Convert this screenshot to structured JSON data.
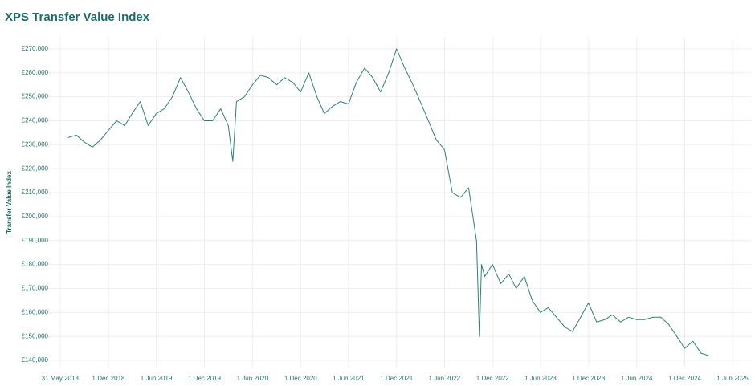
{
  "chart_data": {
    "type": "line",
    "title": "XPS Transfer Value Index",
    "ylabel": "Transfer Value Index",
    "x": [
      "2018-07-01",
      "2018-08-01",
      "2018-09-01",
      "2018-10-01",
      "2018-11-01",
      "2018-12-01",
      "2019-01-01",
      "2019-02-01",
      "2019-03-01",
      "2019-04-01",
      "2019-05-01",
      "2019-06-01",
      "2019-07-01",
      "2019-08-01",
      "2019-09-01",
      "2019-10-01",
      "2019-11-01",
      "2019-12-01",
      "2020-01-01",
      "2020-02-01",
      "2020-03-01",
      "2020-03-18",
      "2020-04-01",
      "2020-05-01",
      "2020-06-01",
      "2020-07-01",
      "2020-08-01",
      "2020-09-01",
      "2020-10-01",
      "2020-11-01",
      "2020-12-01",
      "2021-01-01",
      "2021-02-01",
      "2021-03-01",
      "2021-04-01",
      "2021-05-01",
      "2021-06-01",
      "2021-07-01",
      "2021-08-01",
      "2021-09-01",
      "2021-10-01",
      "2021-11-01",
      "2021-12-01",
      "2022-01-01",
      "2022-02-01",
      "2022-03-01",
      "2022-04-01",
      "2022-05-01",
      "2022-06-01",
      "2022-07-01",
      "2022-08-01",
      "2022-09-01",
      "2022-10-01",
      "2022-10-12",
      "2022-10-20",
      "2022-11-01",
      "2022-12-01",
      "2023-01-01",
      "2023-02-01",
      "2023-03-01",
      "2023-04-01",
      "2023-05-01",
      "2023-06-01",
      "2023-07-01",
      "2023-08-01",
      "2023-09-01",
      "2023-10-01",
      "2023-11-01",
      "2023-12-01",
      "2024-01-01",
      "2024-02-01",
      "2024-03-01",
      "2024-04-01",
      "2024-05-01",
      "2024-06-01",
      "2024-07-01",
      "2024-08-01",
      "2024-09-01",
      "2024-10-01",
      "2024-11-01",
      "2024-12-01",
      "2025-01-01",
      "2025-02-01",
      "2025-03-01"
    ],
    "series": [
      {
        "name": "Transfer Value Index",
        "color": "#2e7f78",
        "values": [
          233000,
          234000,
          231000,
          229000,
          232000,
          236000,
          240000,
          238000,
          243000,
          248000,
          238000,
          243000,
          245000,
          250000,
          258000,
          252000,
          245000,
          240000,
          240000,
          245000,
          238000,
          223000,
          248000,
          250000,
          255000,
          259000,
          258000,
          255000,
          258000,
          256000,
          252000,
          260000,
          250000,
          243000,
          246000,
          248000,
          247000,
          256000,
          262000,
          258000,
          252000,
          260000,
          270000,
          262000,
          255000,
          248000,
          240000,
          232000,
          228000,
          210000,
          208000,
          212000,
          190000,
          150000,
          180000,
          175000,
          180000,
          172000,
          176000,
          170000,
          175000,
          165000,
          160000,
          162000,
          158000,
          154000,
          152000,
          158000,
          164000,
          156000,
          157000,
          159000,
          156000,
          158000,
          157000,
          157000,
          158000,
          158000,
          155000,
          150000,
          145000,
          148000,
          143000,
          142000
        ]
      }
    ],
    "xlim": [
      "2018-03-01",
      "2025-08-10"
    ],
    "xticks": [
      {
        "value": "2018-05-31",
        "label": "31 May 2018"
      },
      {
        "value": "2018-12-01",
        "label": "1 Dec 2018"
      },
      {
        "value": "2019-06-01",
        "label": "1 Jun 2019"
      },
      {
        "value": "2019-12-01",
        "label": "1 Dec 2019"
      },
      {
        "value": "2020-06-01",
        "label": "1 Jun 2020"
      },
      {
        "value": "2020-12-01",
        "label": "1 Dec 2020"
      },
      {
        "value": "2021-06-01",
        "label": "1 Jun 2021"
      },
      {
        "value": "2021-12-01",
        "label": "1 Dec 2021"
      },
      {
        "value": "2022-06-01",
        "label": "1 Jun 2022"
      },
      {
        "value": "2022-12-01",
        "label": "1 Dec 2022"
      },
      {
        "value": "2023-06-01",
        "label": "1 Jun 2023"
      },
      {
        "value": "2023-12-01",
        "label": "1 Dec 2023"
      },
      {
        "value": "2024-06-01",
        "label": "1 Jun 2024"
      },
      {
        "value": "2024-12-01",
        "label": "1 Dec 2024"
      },
      {
        "value": "2025-06-01",
        "label": "1 Jun 2025"
      }
    ],
    "ylim": [
      137000,
      275000
    ],
    "yticks": [
      {
        "value": 140000,
        "label": "£140,000"
      },
      {
        "value": 150000,
        "label": "£150,000"
      },
      {
        "value": 160000,
        "label": "£160,000"
      },
      {
        "value": 170000,
        "label": "£170,000"
      },
      {
        "value": 180000,
        "label": "£180,000"
      },
      {
        "value": 190000,
        "label": "£190,000"
      },
      {
        "value": 200000,
        "label": "£200,000"
      },
      {
        "value": 210000,
        "label": "£210,000"
      },
      {
        "value": 220000,
        "label": "£220,000"
      },
      {
        "value": 230000,
        "label": "£230,000"
      },
      {
        "value": 240000,
        "label": "£240,000"
      },
      {
        "value": 250000,
        "label": "£250,000"
      },
      {
        "value": 260000,
        "label": "£260,000"
      },
      {
        "value": 270000,
        "label": "£270,000"
      }
    ],
    "grid": true
  }
}
